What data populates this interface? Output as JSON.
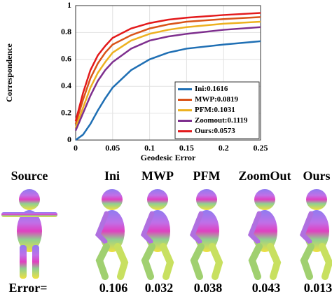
{
  "chart_data": {
    "type": "line",
    "xlabel": "Geodesic Error",
    "ylabel": "Correspondence",
    "x": [
      0,
      0.01,
      0.02,
      0.03,
      0.04,
      0.05,
      0.075,
      0.1,
      0.125,
      0.15,
      0.2,
      0.25
    ],
    "series": [
      {
        "name": "Ini:0.1616",
        "color": "#1f6fb4",
        "values": [
          0.0,
          0.04,
          0.12,
          0.22,
          0.31,
          0.39,
          0.52,
          0.6,
          0.65,
          0.68,
          0.71,
          0.735
        ]
      },
      {
        "name": "MWP:0.0819",
        "color": "#d95319",
        "values": [
          0.12,
          0.3,
          0.46,
          0.57,
          0.65,
          0.71,
          0.78,
          0.83,
          0.86,
          0.88,
          0.9,
          0.915
        ]
      },
      {
        "name": "PFM:0.1031",
        "color": "#edb120",
        "values": [
          0.09,
          0.24,
          0.39,
          0.5,
          0.58,
          0.65,
          0.74,
          0.79,
          0.82,
          0.84,
          0.865,
          0.88
        ]
      },
      {
        "name": "Zoomout:0.1119",
        "color": "#7e2f8e",
        "values": [
          0.07,
          0.2,
          0.33,
          0.44,
          0.52,
          0.58,
          0.68,
          0.74,
          0.77,
          0.79,
          0.82,
          0.84
        ]
      },
      {
        "name": "Ours:0.0573",
        "color": "#e31a1c",
        "values": [
          0.14,
          0.35,
          0.52,
          0.63,
          0.7,
          0.76,
          0.83,
          0.87,
          0.895,
          0.91,
          0.93,
          0.945
        ]
      }
    ],
    "xlim": [
      0,
      0.25
    ],
    "xticks": [
      0,
      0.05,
      0.1,
      0.15,
      0.2,
      0.25
    ],
    "ylim": [
      0,
      1
    ],
    "yticks": [
      0,
      0.2,
      0.4,
      0.6,
      0.8,
      1
    ],
    "grid": true,
    "legend": "lower right"
  },
  "figure": {
    "columns": [
      "Source",
      "Ini",
      "MWP",
      "PFM",
      "ZoomOut",
      "Ours"
    ],
    "error_label": "Error=",
    "errors": [
      0.106,
      0.032,
      0.038,
      0.043,
      0.013
    ]
  }
}
